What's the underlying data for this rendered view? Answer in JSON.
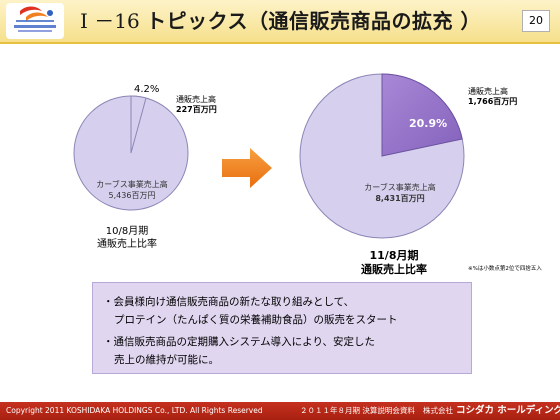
{
  "header": {
    "title_number": "Ⅰ －16",
    "title_text": "トピックス（通信販売商品の拡充 ）",
    "page_number": "20",
    "logo_icon": "koshidaka-logo-icon"
  },
  "left_pie": {
    "slices": [
      {
        "label": "カーブス事業売上高",
        "value_text": "5,436百万円",
        "share": 0.958,
        "color": "#d6d0ee"
      },
      {
        "label": "通販売上高",
        "value_text": "227百万円",
        "share": 0.042,
        "color": "#d6d0ee"
      }
    ],
    "percent_label": "4.2%",
    "caption_line1": "10/8月期",
    "caption_line2": "通販売上比率"
  },
  "arrow_icon": "right-arrow-icon",
  "right_pie": {
    "slices": [
      {
        "label": "カーブス事業売上高",
        "value_text": "8,431百万円",
        "share": 0.791,
        "color": "#d6d0ee"
      },
      {
        "label": "通販売上高",
        "value_text": "1,766百万円",
        "share": 0.209,
        "color": "#9a78c8"
      }
    ],
    "percent_label": "20.9%",
    "caption_line1": "11/8月期",
    "caption_line2": "通販売上比率",
    "note": "※%は小数点第2位で四捨五入"
  },
  "info_box": {
    "item1_line1": "・会員様向け通信販売商品の新たな取り組みとして、",
    "item1_line2": "プロテイン（たんぱく質の栄養補助食品）の販売をスタート",
    "item2_line1": "・通信販売商品の定期購入システム導入により、安定した",
    "item2_line2": "売上の維持が可能に。"
  },
  "footer": {
    "copyright": "Copyright 2011 KOSHIDAKA HOLDINGS Co., LTD. All Rights Reserved",
    "event": "２０１１年８月期 決算説明会資料",
    "company_prefix": "株式会社",
    "company_name": "コシダカ ホールディングス"
  }
}
